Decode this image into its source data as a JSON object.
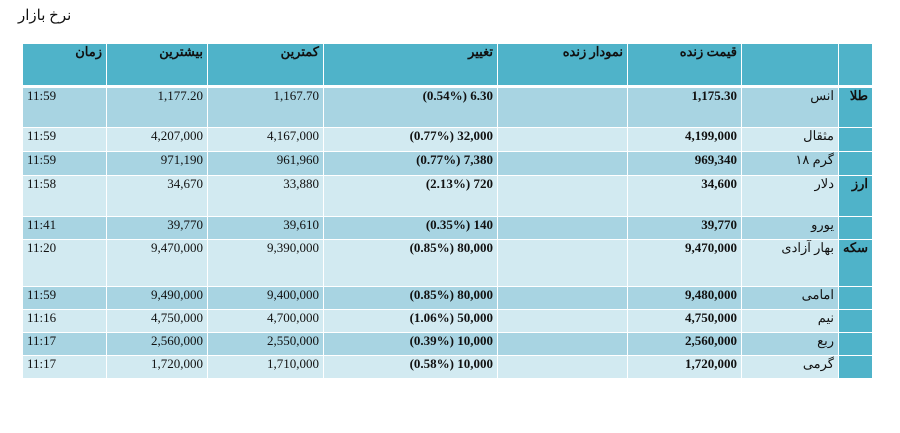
{
  "title": "نرخ بازار",
  "headers": {
    "time": "زمان",
    "high": "بیشترین",
    "low": "کمترین",
    "change": "تغییر",
    "chart": "نمودار زنده",
    "price": "قیمت زنده"
  },
  "rows": [
    {
      "category": "طلا",
      "name": "انس",
      "price": "1,175.30",
      "change": "(0.54%) 6.30",
      "low": "1,167.70",
      "high": "1,177.20",
      "time": "11:59"
    },
    {
      "category": "",
      "name": "مثقال",
      "price": "4,199,000",
      "change": "(0.77%) 32,000",
      "low": "4,167,000",
      "high": "4,207,000",
      "time": "11:59"
    },
    {
      "category": "",
      "name": "گرم ۱۸",
      "price": "969,340",
      "change": "(0.77%) 7,380",
      "low": "961,960",
      "high": "971,190",
      "time": "11:59"
    },
    {
      "category": "ارز",
      "name": "دلار",
      "price": "34,600",
      "change": "(2.13%) 720",
      "low": "33,880",
      "high": "34,670",
      "time": "11:58"
    },
    {
      "category": "",
      "name": "یورو",
      "price": "39,770",
      "change": "(0.35%) 140",
      "low": "39,610",
      "high": "39,770",
      "time": "11:41"
    },
    {
      "category": "سکه",
      "name": "بهار آزادی",
      "price": "9,470,000",
      "change": "(0.85%) 80,000",
      "low": "9,390,000",
      "high": "9,470,000",
      "time": "11:20"
    },
    {
      "category": "",
      "name": "امامی",
      "price": "9,480,000",
      "change": "(0.85%) 80,000",
      "low": "9,400,000",
      "high": "9,490,000",
      "time": "11:59"
    },
    {
      "category": "",
      "name": "نیم",
      "price": "4,750,000",
      "change": "(1.06%) 50,000",
      "low": "4,700,000",
      "high": "4,750,000",
      "time": "11:16"
    },
    {
      "category": "",
      "name": "ربع",
      "price": "2,560,000",
      "change": "(0.39%) 10,000",
      "low": "2,550,000",
      "high": "2,560,000",
      "time": "11:17"
    },
    {
      "category": "",
      "name": "گرمی",
      "price": "1,720,000",
      "change": "(0.58%) 10,000",
      "low": "1,710,000",
      "high": "1,720,000",
      "time": "11:17"
    }
  ]
}
